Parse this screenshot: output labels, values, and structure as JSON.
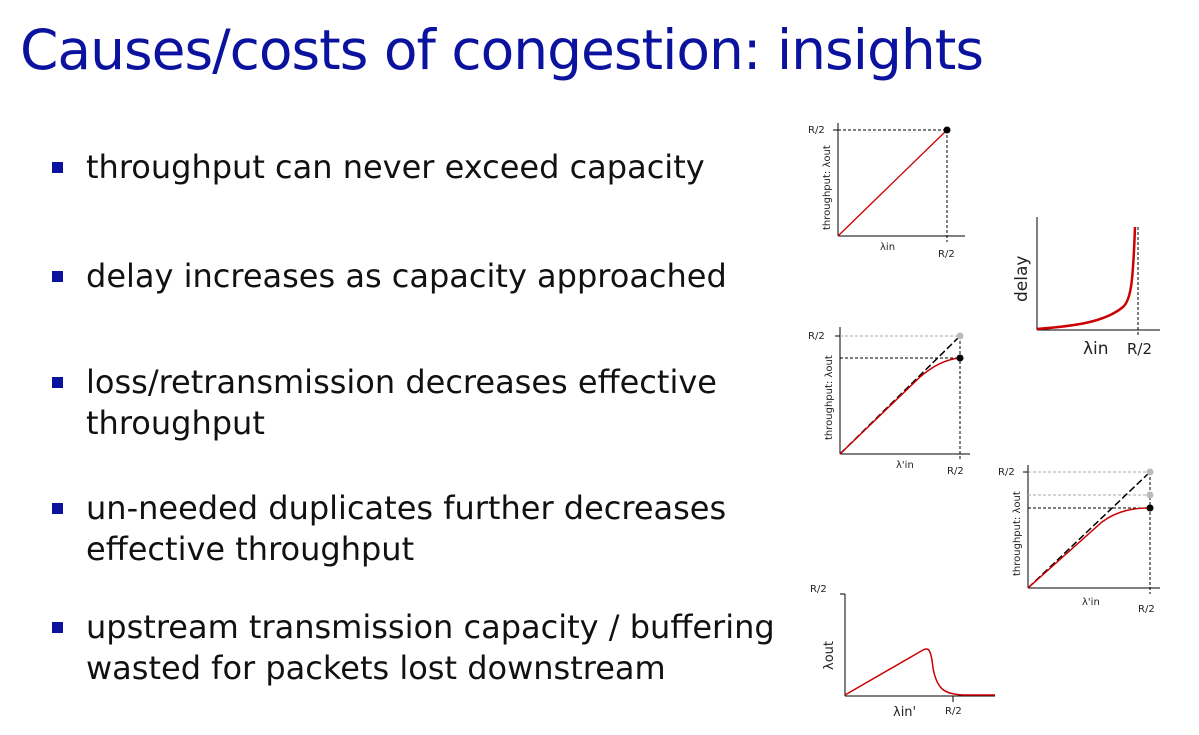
{
  "title": "Causes/costs of congestion: insights",
  "bullets": [
    "throughput can never exceed capacity",
    "delay increases as capacity approached",
    "loss/retransmission decreases effective throughput",
    "un-needed duplicates further decreases effective throughput",
    "upstream transmission capacity / buffering wasted for packets lost downstream"
  ],
  "colors": {
    "title": "#0b129e",
    "bullet": "#0b129e",
    "curve": "#cc0000"
  },
  "figures": {
    "throughput": {
      "ylabel": "throughput: λout",
      "ytick": "R/2",
      "xlabel": "λin",
      "xtick": "R/2"
    },
    "delay": {
      "ylabel": "delay",
      "xlabel": "λin",
      "xtick": "R/2"
    },
    "loss": {
      "ylabel": "throughput: λout",
      "ytick": "R/2",
      "xlabel": "λ'in",
      "xtick": "R/2"
    },
    "duplicates": {
      "ylabel": "throughput: λout",
      "ytick": "R/2",
      "xlabel": "λ'in",
      "xtick": "R/2"
    },
    "upstream": {
      "ylabel": "λout",
      "ytick": "R/2",
      "xlabel": "λin'",
      "xtick": "R/2"
    }
  }
}
